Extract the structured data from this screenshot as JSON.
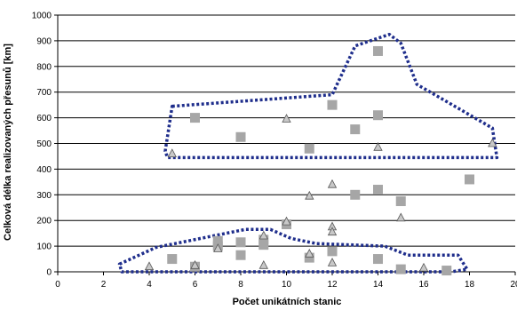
{
  "chart_data": {
    "type": "scatter",
    "xlabel": "Počet unikátních stanic",
    "ylabel": "Celková délka realizovaných přesunů [km]",
    "xlim": [
      0,
      20
    ],
    "ylim": [
      0,
      1000
    ],
    "x_ticks": [
      0,
      2,
      4,
      6,
      8,
      10,
      12,
      14,
      16,
      18,
      20
    ],
    "y_ticks": [
      0,
      100,
      200,
      300,
      400,
      500,
      600,
      700,
      800,
      900,
      1000
    ],
    "grid": "horizontal",
    "legend": "none",
    "series": [
      {
        "marker": "square",
        "color": "#a6a6a6",
        "points": [
          [
            5,
            50
          ],
          [
            6,
            600
          ],
          [
            6,
            20
          ],
          [
            7,
            120
          ],
          [
            7,
            100
          ],
          [
            8,
            525
          ],
          [
            8,
            115
          ],
          [
            8,
            65
          ],
          [
            9,
            105
          ],
          [
            9,
            125
          ],
          [
            10,
            185
          ],
          [
            11,
            480
          ],
          [
            11,
            55
          ],
          [
            12,
            650
          ],
          [
            12,
            80
          ],
          [
            13,
            555
          ],
          [
            13,
            300
          ],
          [
            14,
            860
          ],
          [
            14,
            610
          ],
          [
            14,
            320
          ],
          [
            14,
            50
          ],
          [
            15,
            275
          ],
          [
            15,
            10
          ],
          [
            17,
            5
          ],
          [
            18,
            360
          ]
        ]
      },
      {
        "marker": "triangle",
        "color": "#c8c8c8",
        "points": [
          [
            4,
            20
          ],
          [
            5,
            460
          ],
          [
            6,
            25
          ],
          [
            7,
            90
          ],
          [
            9,
            140
          ],
          [
            9,
            25
          ],
          [
            10,
            595
          ],
          [
            10,
            195
          ],
          [
            11,
            295
          ],
          [
            11,
            70
          ],
          [
            12,
            340
          ],
          [
            12,
            175
          ],
          [
            12,
            155
          ],
          [
            12,
            35
          ],
          [
            14,
            485
          ],
          [
            15,
            210
          ],
          [
            16,
            15
          ],
          [
            19,
            500
          ]
        ]
      }
    ],
    "annotations": [
      {
        "shape": "dotted-outline",
        "color": "#1f2e8c",
        "points": [
          [
            5.0,
            645
          ],
          [
            12.0,
            690
          ],
          [
            13.0,
            880
          ],
          [
            14.5,
            925
          ],
          [
            15.0,
            890
          ],
          [
            15.7,
            730
          ],
          [
            19.0,
            560
          ],
          [
            19.2,
            445
          ],
          [
            4.8,
            445
          ],
          [
            4.7,
            470
          ]
        ]
      },
      {
        "shape": "dotted-outline",
        "color": "#1f2e8c",
        "points": [
          [
            2.7,
            30
          ],
          [
            4.3,
            95
          ],
          [
            8.2,
            165
          ],
          [
            9.3,
            165
          ],
          [
            10.2,
            130
          ],
          [
            11.3,
            110
          ],
          [
            14.3,
            100
          ],
          [
            15.3,
            65
          ],
          [
            17.5,
            65
          ],
          [
            17.9,
            10
          ],
          [
            17.2,
            0
          ],
          [
            2.8,
            0
          ]
        ]
      }
    ]
  }
}
